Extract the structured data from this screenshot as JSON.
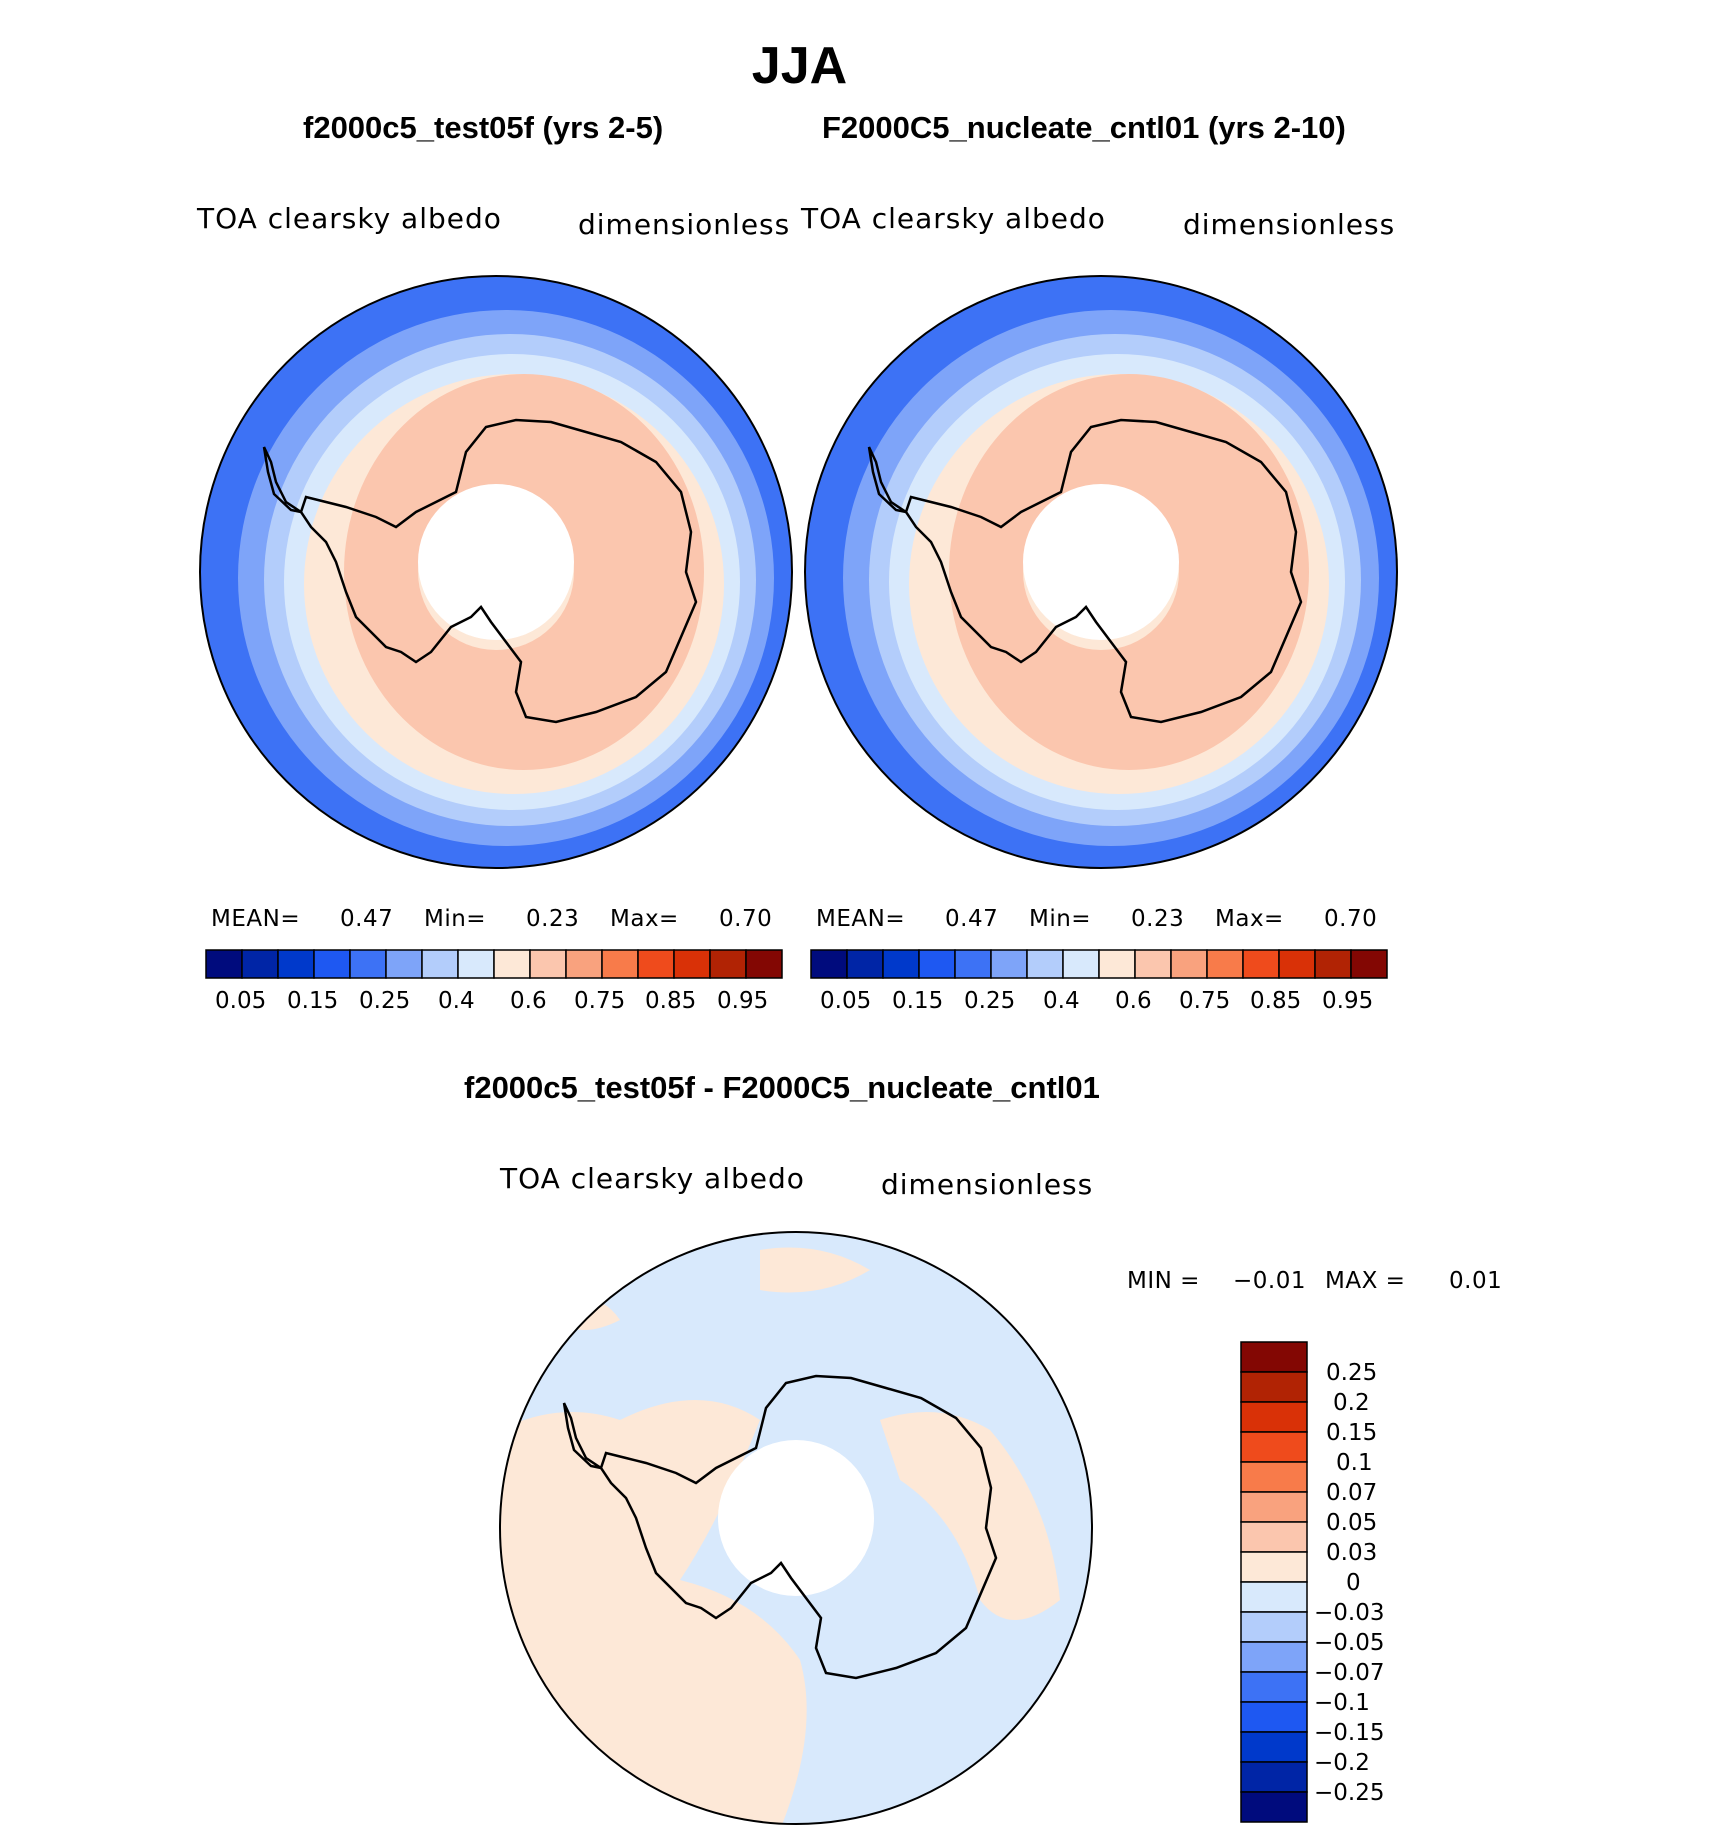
{
  "figure": {
    "title": "JJA",
    "variable": "TOA clearsky albedo",
    "units": "dimensionless"
  },
  "colors": {
    "abs_levels": [
      "#000b7d",
      "#0025a6",
      "#0039cb",
      "#1e58f2",
      "#3d72f5",
      "#7ea4f9",
      "#b3cdfb",
      "#d8e9fc",
      "#fde8d7",
      "#fbc6ae",
      "#f9a27e",
      "#f87b4a",
      "#ef4b1c",
      "#d93107",
      "#b12304",
      "#830703"
    ],
    "diff_levels": [
      "#000b7d",
      "#0025a6",
      "#0039cb",
      "#1e58f2",
      "#3d72f5",
      "#7ea4f9",
      "#b3cdfb",
      "#d8e9fc",
      "#fde8d7",
      "#fbc6ae",
      "#f9a27e",
      "#f87b4a",
      "#ef4b1c",
      "#d93107",
      "#b12304",
      "#830703"
    ],
    "ocean_abs": "#3d72f5",
    "land": "#f9c9b0"
  },
  "chart_data": [
    {
      "type": "heatmap",
      "projection": "south-polar-stereographic",
      "title": "f2000c5_test05f (yrs 2-5)",
      "label_left": "TOA clearsky albedo",
      "label_right": "dimensionless",
      "stats": {
        "mean_label": "MEAN=",
        "mean": "0.47",
        "min_label": "Min=",
        "min": "0.23",
        "max_label": "Max=",
        "max": "0.70"
      },
      "colorbar_ticks": [
        "0.05",
        "0.15",
        "0.25",
        "0.4",
        "0.6",
        "0.75",
        "0.85",
        "0.95"
      ]
    },
    {
      "type": "heatmap",
      "projection": "south-polar-stereographic",
      "title": "F2000C5_nucleate_cntl01 (yrs 2-10)",
      "label_left": "TOA clearsky albedo",
      "label_right": "dimensionless",
      "stats": {
        "mean_label": "MEAN=",
        "mean": "0.47",
        "min_label": "Min=",
        "min": "0.23",
        "max_label": "Max=",
        "max": "0.70"
      },
      "colorbar_ticks": [
        "0.05",
        "0.15",
        "0.25",
        "0.4",
        "0.6",
        "0.75",
        "0.85",
        "0.95"
      ]
    },
    {
      "type": "heatmap",
      "projection": "south-polar-stereographic",
      "title": "f2000c5_test05f - F2000C5_nucleate_cntl01",
      "label_left": "TOA clearsky albedo",
      "label_right": "dimensionless",
      "stats": {
        "min_label": "MIN =",
        "min": "−0.01",
        "max_label": "MAX =",
        "max": "0.01"
      },
      "colorbar_ticks": [
        "0.25",
        "0.2",
        "0.15",
        "0.1",
        "0.07",
        "0.05",
        "0.03",
        "0",
        "−0.03",
        "−0.05",
        "−0.07",
        "−0.1",
        "−0.15",
        "−0.2",
        "−0.25"
      ]
    }
  ]
}
